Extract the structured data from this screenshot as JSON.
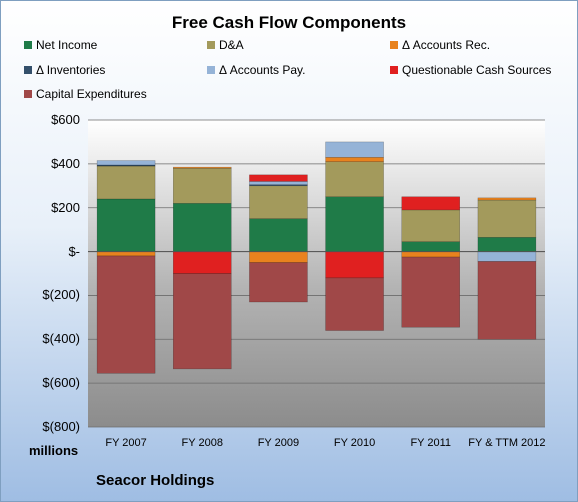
{
  "chart_data": {
    "type": "bar",
    "stacked": true,
    "title": "Free Cash Flow Components",
    "unit_label": "millions",
    "footer": "Seacor Holdings",
    "ylim": [
      -800,
      600
    ],
    "yticks": [
      600,
      400,
      200,
      0,
      -200,
      -400,
      -600,
      -800
    ],
    "ytick_labels": [
      "$600",
      "$400",
      "$200",
      "$-",
      "$(200)",
      "$(400)",
      "$(600)",
      "$(800)"
    ],
    "categories": [
      "FY 2007",
      "FY 2008",
      "FY 2009",
      "FY 2010",
      "FY 2011",
      "FY & TTM 2012"
    ],
    "legend_position": "top",
    "grid": true,
    "series": [
      {
        "name": "Net Income",
        "color": "#1f7b48",
        "values": [
          240,
          220,
          150,
          250,
          45,
          65
        ]
      },
      {
        "name": "D&A",
        "color": "#a39a5c",
        "values": [
          150,
          160,
          150,
          160,
          145,
          170
        ]
      },
      {
        "name": "Δ Accounts Rec.",
        "color": "#e8821e",
        "values": [
          -20,
          5,
          -50,
          20,
          -25,
          10
        ]
      },
      {
        "name": "Δ Inventories",
        "color": "#34506b",
        "values": [
          5,
          0,
          5,
          0,
          0,
          0
        ]
      },
      {
        "name": "Δ Accounts Pay.",
        "color": "#95b3d7",
        "values": [
          20,
          0,
          15,
          70,
          0,
          -45
        ]
      },
      {
        "name": "Questionable Cash Sources",
        "color": "#e02020",
        "values": [
          0,
          -100,
          30,
          -120,
          60,
          0
        ]
      },
      {
        "name": "Capital Expenditures",
        "color": "#a04848",
        "values": [
          -535,
          -435,
          -180,
          -240,
          -320,
          -355
        ]
      }
    ]
  }
}
